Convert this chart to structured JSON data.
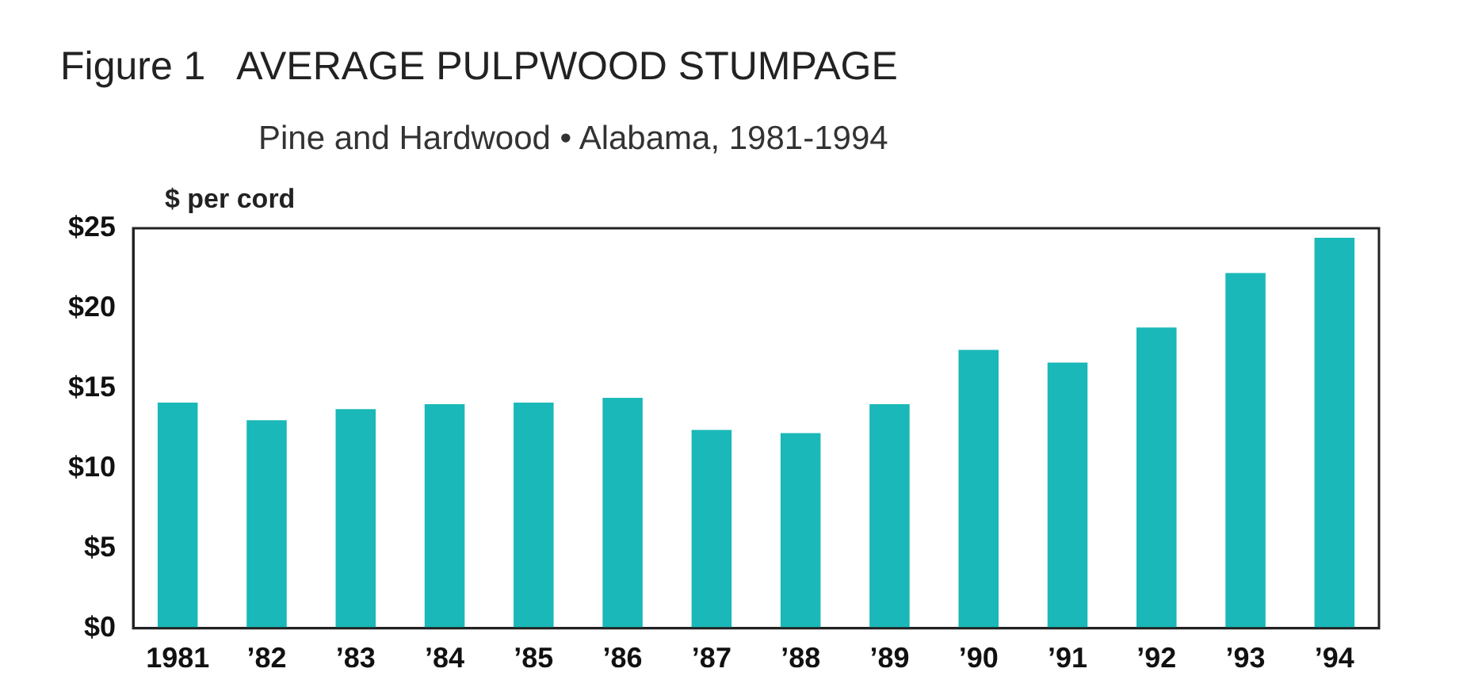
{
  "chart_data": {
    "type": "bar",
    "title": "Figure 1   AVERAGE PULPWOOD STUMPAGE",
    "subtitle": "Pine and Hardwood • Alabama, 1981-1994",
    "ylabel": "$ per cord",
    "categories": [
      "1981",
      "’82",
      "’83",
      "’84",
      "’85",
      "’86",
      "’87",
      "’88",
      "’89",
      "’90",
      "’91",
      "’92",
      "’93",
      "’94"
    ],
    "values": [
      14.1,
      13.0,
      13.7,
      14.0,
      14.1,
      14.4,
      12.4,
      12.2,
      14.0,
      17.4,
      16.6,
      18.8,
      22.2,
      24.4
    ],
    "color": "#1ab8b8",
    "ylim": [
      0,
      25
    ],
    "yticks": [
      {
        "value": 0,
        "label": "$0"
      },
      {
        "value": 5,
        "label": "$5"
      },
      {
        "value": 10,
        "label": "$10"
      },
      {
        "value": 15,
        "label": "$15"
      },
      {
        "value": 20,
        "label": "$20"
      },
      {
        "value": 25,
        "label": "$25"
      }
    ],
    "grid": false,
    "legend": false
  }
}
